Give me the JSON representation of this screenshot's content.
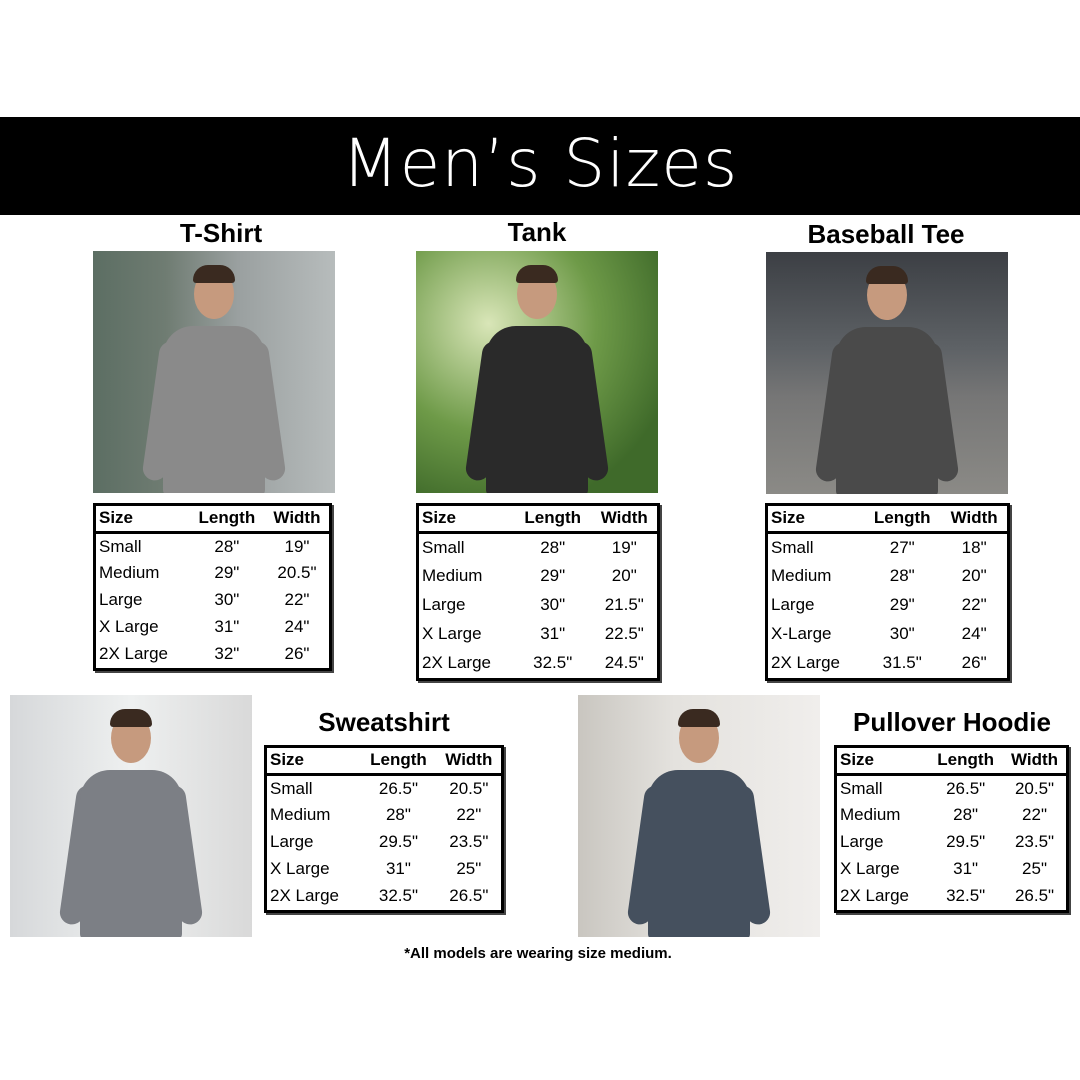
{
  "title": "Men’s Sizes",
  "footnote": "*All models are wearing size medium.",
  "columns": [
    "Size",
    "Length",
    "Width"
  ],
  "products": [
    {
      "name": "T-Shirt",
      "photo_shirt_color": "#8a8a8a",
      "rows": [
        [
          "Small",
          "28\"",
          "19\""
        ],
        [
          "Medium",
          "29\"",
          "20.5\""
        ],
        [
          "Large",
          "30\"",
          "22\""
        ],
        [
          "X Large",
          "31\"",
          "24\""
        ],
        [
          "2X Large",
          "32\"",
          "26\""
        ]
      ]
    },
    {
      "name": "Tank",
      "photo_shirt_color": "#2a2a2a",
      "rows": [
        [
          "Small",
          "28\"",
          "19\""
        ],
        [
          "Medium",
          "29\"",
          "20\""
        ],
        [
          "Large",
          "30\"",
          "21.5\""
        ],
        [
          "X Large",
          "31\"",
          "22.5\""
        ],
        [
          "2X Large",
          "32.5\"",
          "24.5\""
        ]
      ]
    },
    {
      "name": "Baseball Tee",
      "photo_shirt_color": "#4a4a4a",
      "rows": [
        [
          "Small",
          "27\"",
          "18\""
        ],
        [
          "Medium",
          "28\"",
          "20\""
        ],
        [
          "Large",
          "29\"",
          "22\""
        ],
        [
          "X-Large",
          "30\"",
          "24\""
        ],
        [
          "2X Large",
          "31.5\"",
          "26\""
        ]
      ]
    },
    {
      "name": "Sweatshirt",
      "photo_shirt_color": "#7c7f85",
      "rows": [
        [
          "Small",
          "26.5\"",
          "20.5\""
        ],
        [
          "Medium",
          "28\"",
          "22\""
        ],
        [
          "Large",
          "29.5\"",
          "23.5\""
        ],
        [
          "X Large",
          "31\"",
          "25\""
        ],
        [
          "2X Large",
          "32.5\"",
          "26.5\""
        ]
      ]
    },
    {
      "name": "Pullover Hoodie",
      "photo_shirt_color": "#45505e",
      "rows": [
        [
          "Small",
          "26.5\"",
          "20.5\""
        ],
        [
          "Medium",
          "28\"",
          "22\""
        ],
        [
          "Large",
          "29.5\"",
          "23.5\""
        ],
        [
          "X Large",
          "31\"",
          "25\""
        ],
        [
          "2X Large",
          "32.5\"",
          "26.5\""
        ]
      ]
    }
  ]
}
